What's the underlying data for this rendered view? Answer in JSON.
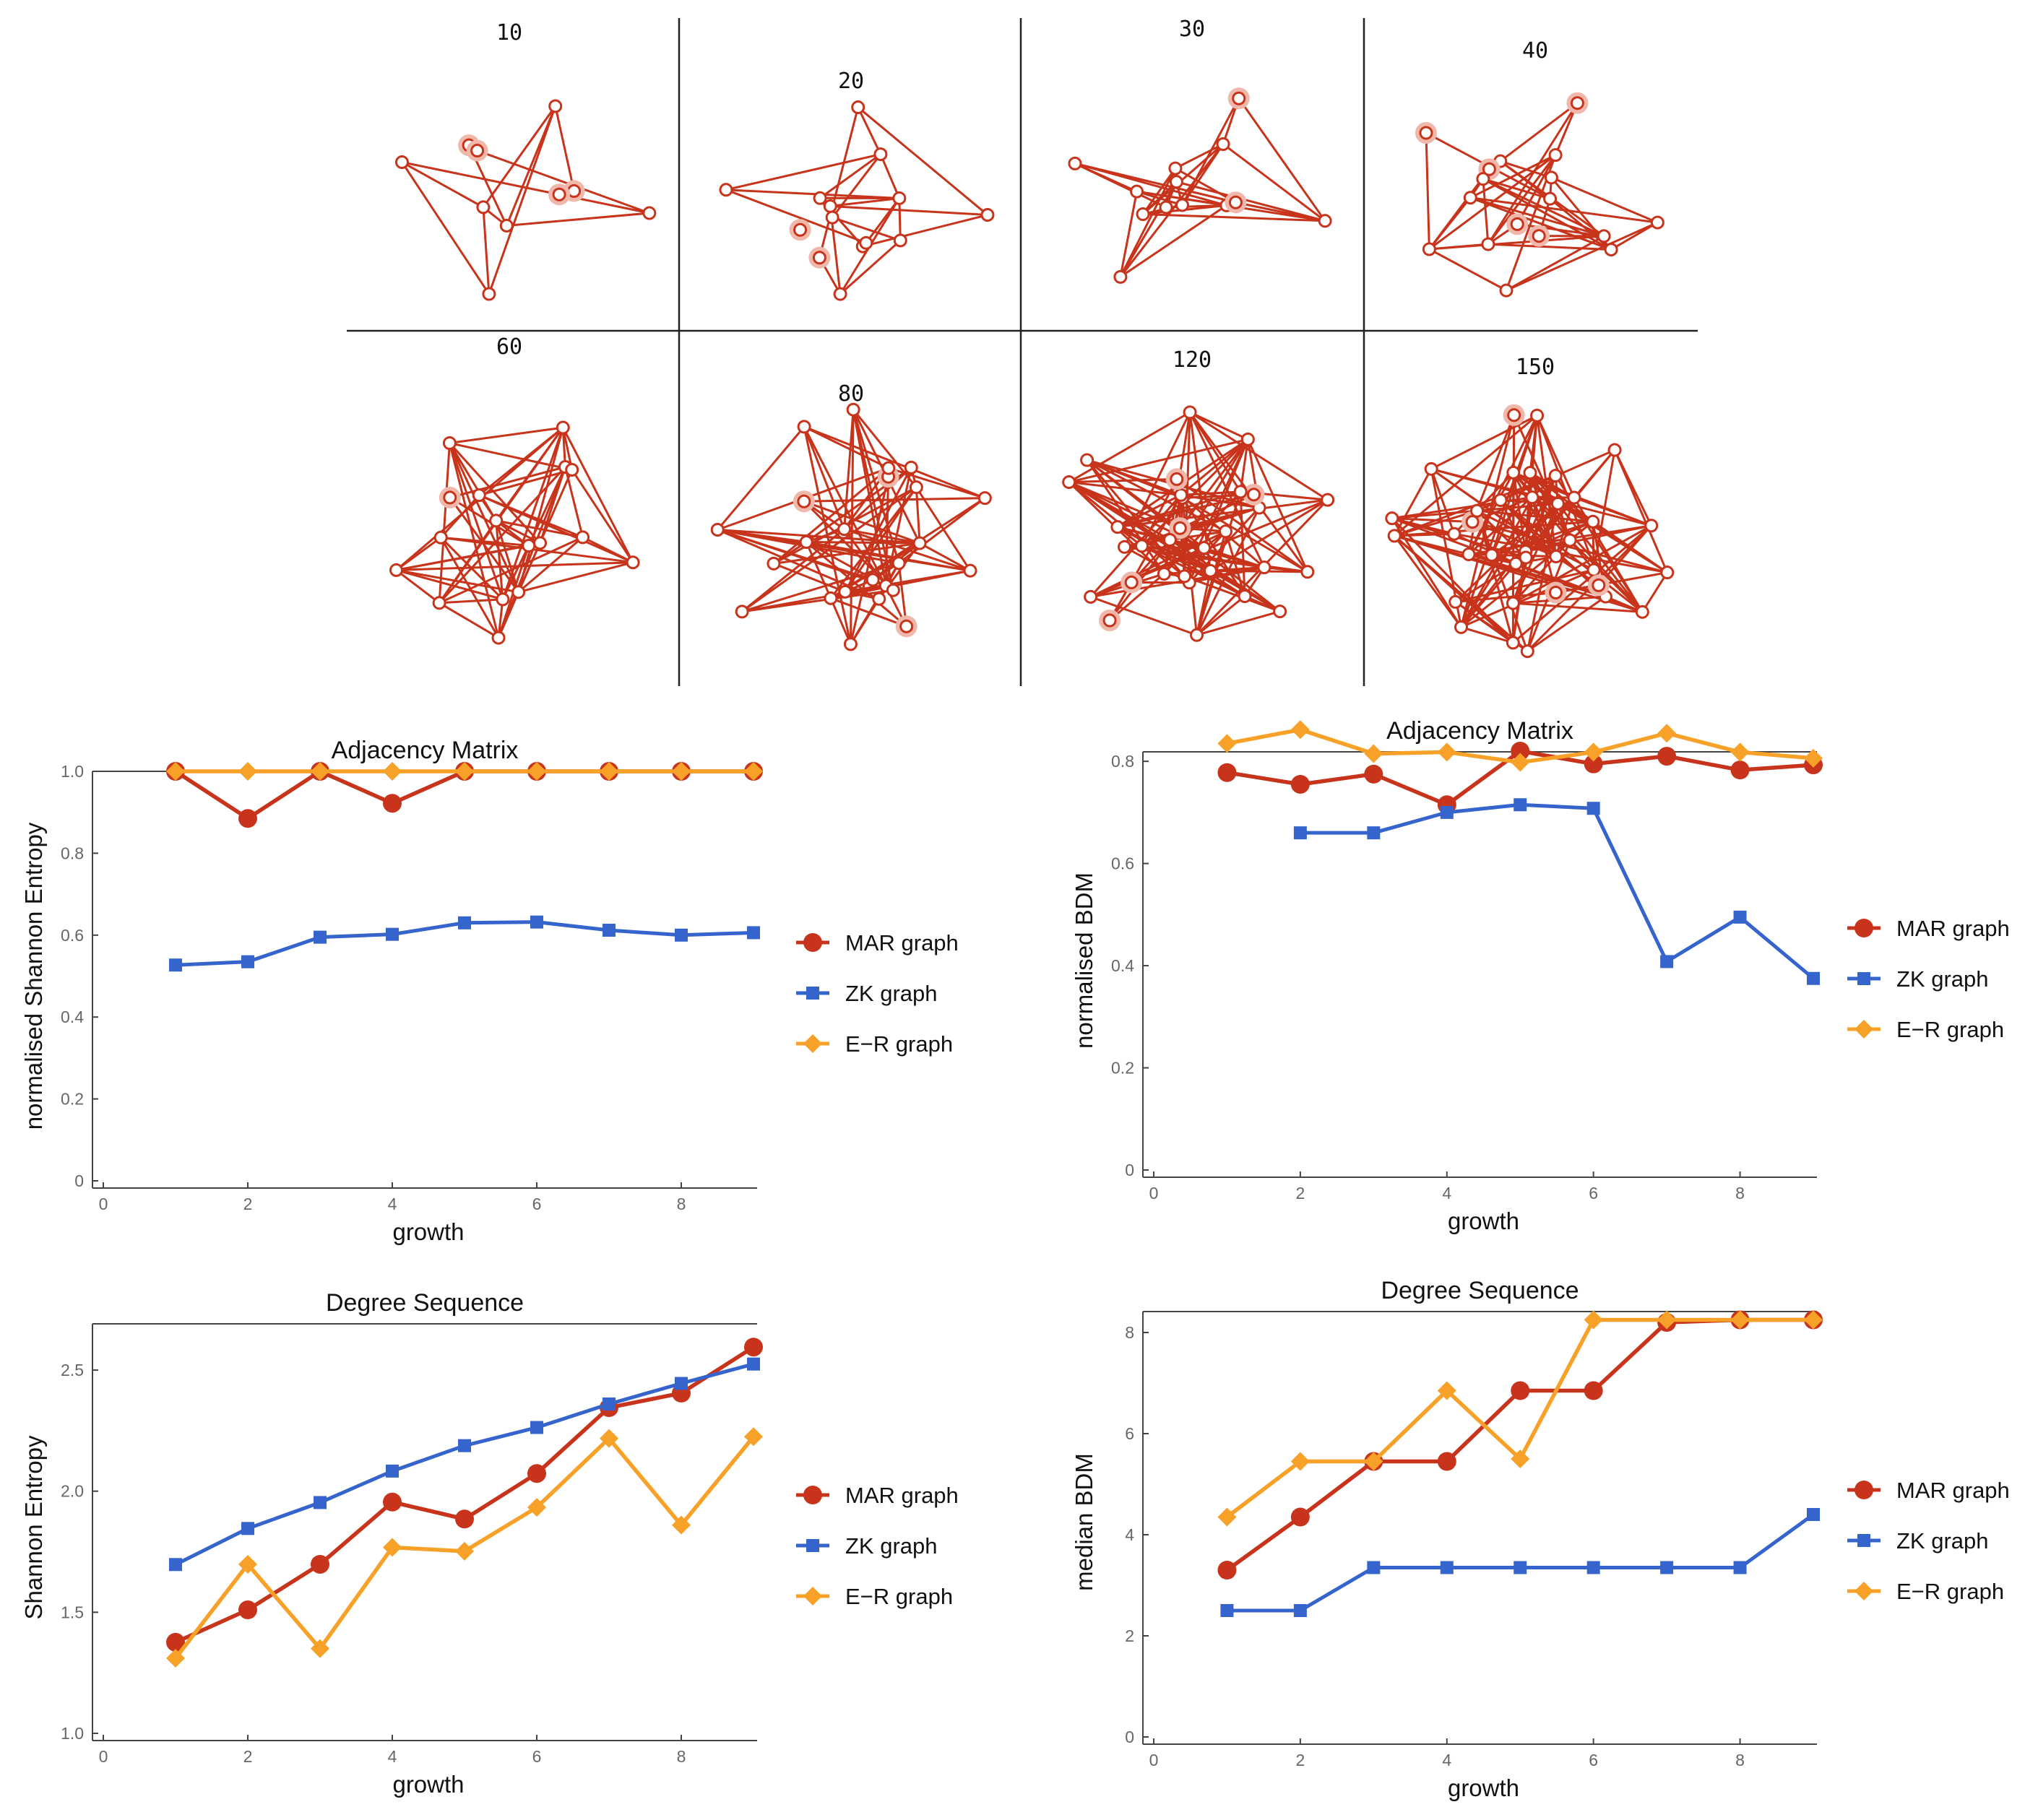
{
  "colors": {
    "mar": "#c8341b",
    "zk": "#3565cc",
    "er": "#f7a128",
    "edge": "#c8341b",
    "halo": "#f0b8aa",
    "axis": "#555555",
    "tick_text": "#666666",
    "label_text": "#111111"
  },
  "graph_panels": [
    {
      "label": "10",
      "nodes": 10,
      "edges": 12
    },
    {
      "label": "20",
      "nodes": 14,
      "edges": 24
    },
    {
      "label": "30",
      "nodes": 13,
      "edges": 32
    },
    {
      "label": "40",
      "nodes": 17,
      "edges": 40
    },
    {
      "label": "60",
      "nodes": 17,
      "edges": 60
    },
    {
      "label": "80",
      "nodes": 24,
      "edges": 80
    },
    {
      "label": "120",
      "nodes": 30,
      "edges": 120
    },
    {
      "label": "150",
      "nodes": 36,
      "edges": 150
    }
  ],
  "chart_data": [
    {
      "type": "line",
      "title": "Adjacency Matrix",
      "xlabel": "growth",
      "ylabel": "normalised Shannon Entropy",
      "xlim": [
        0,
        9
      ],
      "ylim": [
        0,
        1.0
      ],
      "xticks": [
        0,
        2,
        4,
        6,
        8
      ],
      "yticks": [
        0,
        0.2,
        0.4,
        0.6,
        0.8,
        1.0
      ],
      "ytick_labels": [
        "0",
        "0.2",
        "0.4",
        "0.6",
        "0.8",
        "1.0"
      ],
      "legend": "right",
      "series": [
        {
          "name": "MAR graph",
          "key": "mar",
          "marker": "circle",
          "x": [
            1,
            2,
            3,
            4,
            5,
            6,
            7,
            8,
            9
          ],
          "values": [
            1.0,
            0.885,
            1.0,
            0.922,
            1.0,
            1.0,
            1.0,
            1.0,
            1.0
          ]
        },
        {
          "name": "ZK graph",
          "key": "zk",
          "marker": "square",
          "x": [
            1,
            2,
            3,
            4,
            5,
            6,
            7,
            8,
            9
          ],
          "values": [
            0.527,
            0.535,
            0.595,
            0.602,
            0.63,
            0.632,
            0.612,
            0.6,
            0.606
          ]
        },
        {
          "name": "E−R graph",
          "key": "er",
          "marker": "diamond",
          "x": [
            1,
            2,
            3,
            4,
            5,
            6,
            7,
            8,
            9
          ],
          "values": [
            1.0,
            1.0,
            1.0,
            1.0,
            1.0,
            1.0,
            1.0,
            1.0,
            1.0
          ]
        }
      ]
    },
    {
      "type": "line",
      "title": "Adjacency Matrix",
      "xlabel": "growth",
      "ylabel": "normalised BDM",
      "xlim": [
        0,
        9
      ],
      "ylim": [
        0,
        0.82
      ],
      "xticks": [
        0,
        2,
        4,
        6,
        8
      ],
      "yticks": [
        0,
        0.2,
        0.4,
        0.6,
        0.8
      ],
      "ytick_labels": [
        "0",
        "0.2",
        "0.4",
        "0.6",
        "0.8"
      ],
      "legend": "right",
      "series": [
        {
          "name": "MAR graph",
          "key": "mar",
          "marker": "circle",
          "x": [
            1,
            2,
            3,
            4,
            5,
            6,
            7,
            8,
            9
          ],
          "values": [
            0.778,
            0.755,
            0.775,
            0.715,
            0.82,
            0.795,
            0.81,
            0.783,
            0.793
          ]
        },
        {
          "name": "ZK graph",
          "key": "zk",
          "marker": "square",
          "x": [
            2,
            3,
            4,
            5,
            6,
            7,
            8,
            9
          ],
          "values": [
            0.66,
            0.66,
            0.7,
            0.715,
            0.708,
            0.408,
            0.495,
            0.375
          ]
        },
        {
          "name": "E−R graph",
          "key": "er",
          "marker": "diamond",
          "x": [
            1,
            2,
            3,
            4,
            5,
            6,
            7,
            8,
            9
          ],
          "values": [
            0.835,
            0.862,
            0.815,
            0.818,
            0.798,
            0.818,
            0.855,
            0.818,
            0.806
          ]
        }
      ]
    },
    {
      "type": "line",
      "title": "Degree Sequence",
      "xlabel": "growth",
      "ylabel": "Shannon Entropy",
      "xlim": [
        0,
        9
      ],
      "ylim": [
        1.0,
        2.7
      ],
      "xticks": [
        0,
        2,
        4,
        6,
        8
      ],
      "yticks": [
        1.0,
        1.5,
        2.0,
        2.5
      ],
      "ytick_labels": [
        "1.0",
        "1.5",
        "2.0",
        "2.5"
      ],
      "legend": "right",
      "series": [
        {
          "name": "MAR graph",
          "key": "mar",
          "marker": "circle",
          "x": [
            1,
            2,
            3,
            4,
            5,
            6,
            7,
            8,
            9
          ],
          "values": [
            1.376,
            1.51,
            1.698,
            1.955,
            1.885,
            2.073,
            2.345,
            2.405,
            2.595
          ]
        },
        {
          "name": "ZK graph",
          "key": "zk",
          "marker": "square",
          "x": [
            1,
            2,
            3,
            4,
            5,
            6,
            7,
            8,
            9
          ],
          "values": [
            1.697,
            1.846,
            1.953,
            2.083,
            2.188,
            2.263,
            2.36,
            2.445,
            2.525
          ]
        },
        {
          "name": "E−R graph",
          "key": "er",
          "marker": "diamond",
          "x": [
            1,
            2,
            3,
            4,
            5,
            6,
            7,
            8,
            9
          ],
          "values": [
            1.31,
            1.698,
            1.35,
            1.768,
            1.752,
            1.933,
            2.218,
            1.86,
            2.225
          ]
        }
      ]
    },
    {
      "type": "line",
      "title": "Degree Sequence",
      "xlabel": "growth",
      "ylabel": "median BDM",
      "xlim": [
        0,
        9
      ],
      "ylim": [
        0,
        8.5
      ],
      "xticks": [
        0,
        2,
        4,
        6,
        8
      ],
      "yticks": [
        0,
        2,
        4,
        6,
        8
      ],
      "ytick_labels": [
        "0",
        "2",
        "4",
        "6",
        "8"
      ],
      "legend": "right",
      "series": [
        {
          "name": "MAR graph",
          "key": "mar",
          "marker": "circle",
          "x": [
            1,
            2,
            3,
            4,
            5,
            6,
            7,
            8,
            9
          ],
          "values": [
            3.3,
            4.35,
            5.45,
            5.45,
            6.85,
            6.85,
            8.2,
            8.25,
            8.25
          ]
        },
        {
          "name": "ZK graph",
          "key": "zk",
          "marker": "square",
          "x": [
            1,
            2,
            3,
            4,
            5,
            6,
            7,
            8,
            9
          ],
          "values": [
            2.5,
            2.5,
            3.35,
            3.35,
            3.35,
            3.35,
            3.35,
            3.35,
            4.4
          ]
        },
        {
          "name": "E−R graph",
          "key": "er",
          "marker": "diamond",
          "x": [
            1,
            2,
            3,
            4,
            5,
            6,
            7,
            8,
            9
          ],
          "values": [
            4.35,
            5.45,
            5.45,
            6.85,
            5.5,
            8.25,
            8.25,
            8.25,
            8.25
          ]
        }
      ]
    }
  ]
}
